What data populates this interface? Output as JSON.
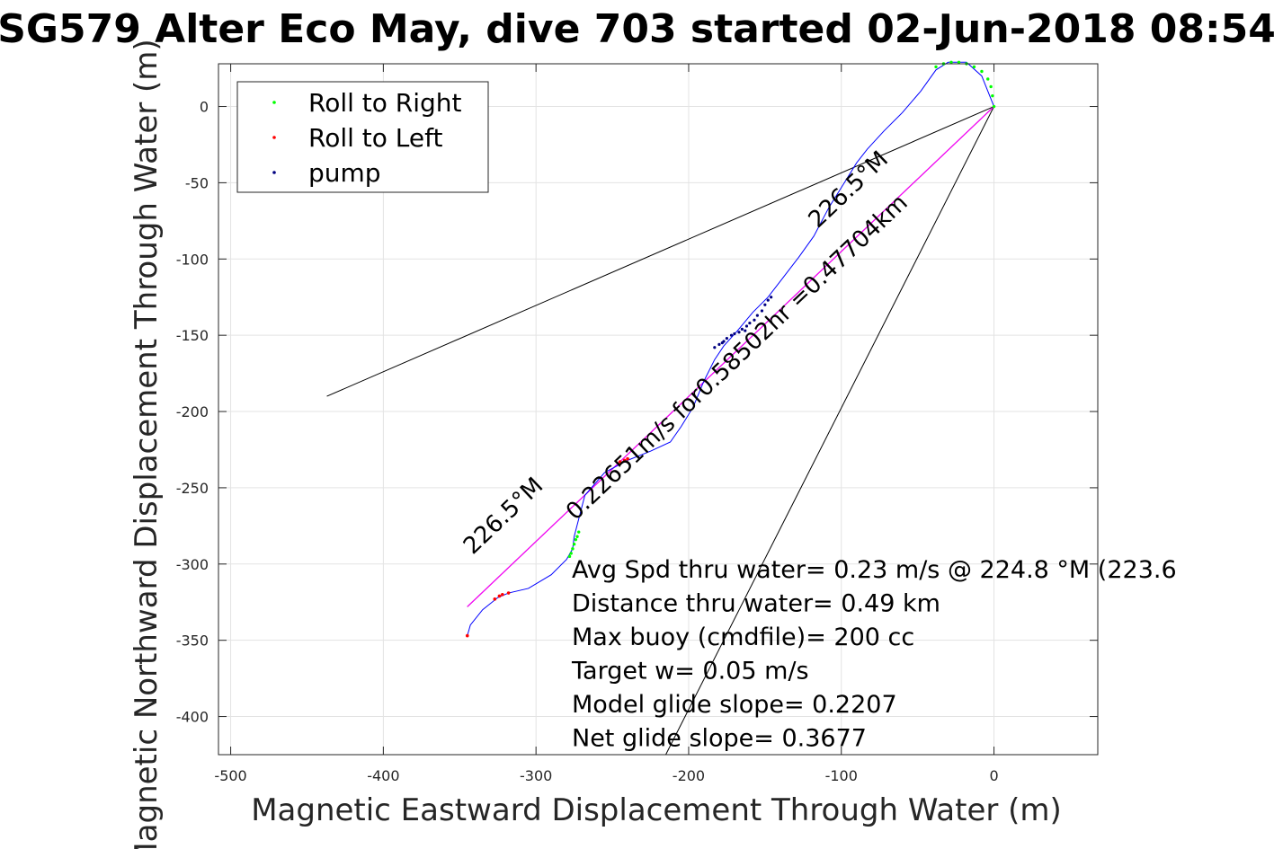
{
  "chart_data": {
    "type": "line",
    "title": "SG579 Alter Eco May, dive 703 started 02-Jun-2018 08:54",
    "xlabel": "Magnetic Eastward Displacement Through Water (m)",
    "ylabel": "Magnetic Northward Displacement Through Water (m)",
    "xlim": [
      -508,
      68
    ],
    "ylim": [
      -425,
      28
    ],
    "xticks": [
      -500,
      -400,
      -300,
      -200,
      -100,
      0
    ],
    "yticks": [
      0,
      -50,
      -100,
      -150,
      -200,
      -250,
      -300,
      -350,
      -400
    ],
    "grid": true,
    "legend_position": "top-left",
    "legend": [
      {
        "label": "Roll to Right",
        "color": "#00ff00"
      },
      {
        "label": "Roll to Left",
        "color": "#ff0000"
      },
      {
        "label": "pump",
        "color": "#000080"
      }
    ],
    "track": {
      "name": "track",
      "color": "#0000ff",
      "x": [
        -345,
        -343,
        -335,
        -325,
        -318,
        -305,
        -290,
        -280,
        -276,
        -275,
        -268,
        -255,
        -240,
        -225,
        -212,
        -205,
        -197,
        -190,
        -183,
        -177,
        -168,
        -158,
        -148,
        -138,
        -128,
        -118,
        -108,
        -98,
        -90,
        -83,
        -72,
        -60,
        -48,
        -38,
        -30,
        -18,
        -8,
        0
      ],
      "y": [
        -347,
        -340,
        -330,
        -322,
        -319,
        -316,
        -307,
        -297,
        -290,
        -282,
        -255,
        -240,
        -232,
        -226,
        -220,
        -210,
        -197,
        -180,
        -166,
        -157,
        -147,
        -135,
        -125,
        -112,
        -99,
        -85,
        -66,
        -50,
        -37,
        -28,
        -16,
        -4,
        10,
        24,
        29,
        29,
        20,
        0
      ]
    },
    "roll_right": {
      "x": [
        -278,
        -277,
        -276,
        -275,
        -274,
        -273,
        -272,
        -38,
        -33,
        -28,
        -23,
        -18,
        -13,
        -8,
        -4,
        -2,
        -1,
        0
      ],
      "y": [
        -295,
        -293,
        -290,
        -287,
        -284,
        -282,
        -279,
        26,
        28,
        29,
        29,
        28,
        26,
        23,
        18,
        13,
        7,
        0
      ]
    },
    "roll_left": {
      "x": [
        -345,
        -327,
        -324,
        -322,
        -318,
        -245,
        -242,
        -240
      ],
      "y": [
        -347,
        -323,
        -321,
        -320,
        -319,
        -233,
        -232,
        -231
      ]
    },
    "pump": {
      "x": [
        -183,
        -180,
        -177,
        -175,
        -172,
        -170,
        -167,
        -165,
        -162,
        -160,
        -157,
        -155,
        -152,
        -150,
        -148,
        -146,
        -178,
        -163
      ],
      "y": [
        -158,
        -156,
        -154,
        -152,
        -150,
        -149,
        -148,
        -146,
        -144,
        -142,
        -140,
        -137,
        -134,
        -130,
        -127,
        -125,
        -155,
        -147
      ]
    },
    "course_line": {
      "color": "#ff00ff",
      "x": [
        -345,
        0
      ],
      "y": [
        -328,
        0
      ]
    },
    "black_lines": [
      {
        "x": [
          -437,
          0
        ],
        "y": [
          -190,
          0
        ]
      },
      {
        "x": [
          -345,
          0
        ],
        "y": [
          -328,
          0
        ]
      },
      {
        "x": [
          -215,
          0
        ],
        "y": [
          -425,
          0
        ]
      }
    ],
    "rotated_annotations": [
      {
        "text": "226.5°M",
        "x": -318,
        "y": -272
      },
      {
        "text": "0.22651m/s for0.58502hr =0.47704km",
        "x": -165,
        "y": -168
      },
      {
        "text": "226.5°M",
        "x": -92,
        "y": -58
      }
    ],
    "annotations": [
      "Avg Spd thru water=  0.23 m/s @ 224.8 °M (223.6",
      "Distance thru water=  0.49 km",
      "Max buoy (cmdfile)= 200 cc",
      "Target w= 0.05 m/s",
      "Model glide slope= 0.2207",
      "Net glide slope= 0.3677"
    ]
  }
}
